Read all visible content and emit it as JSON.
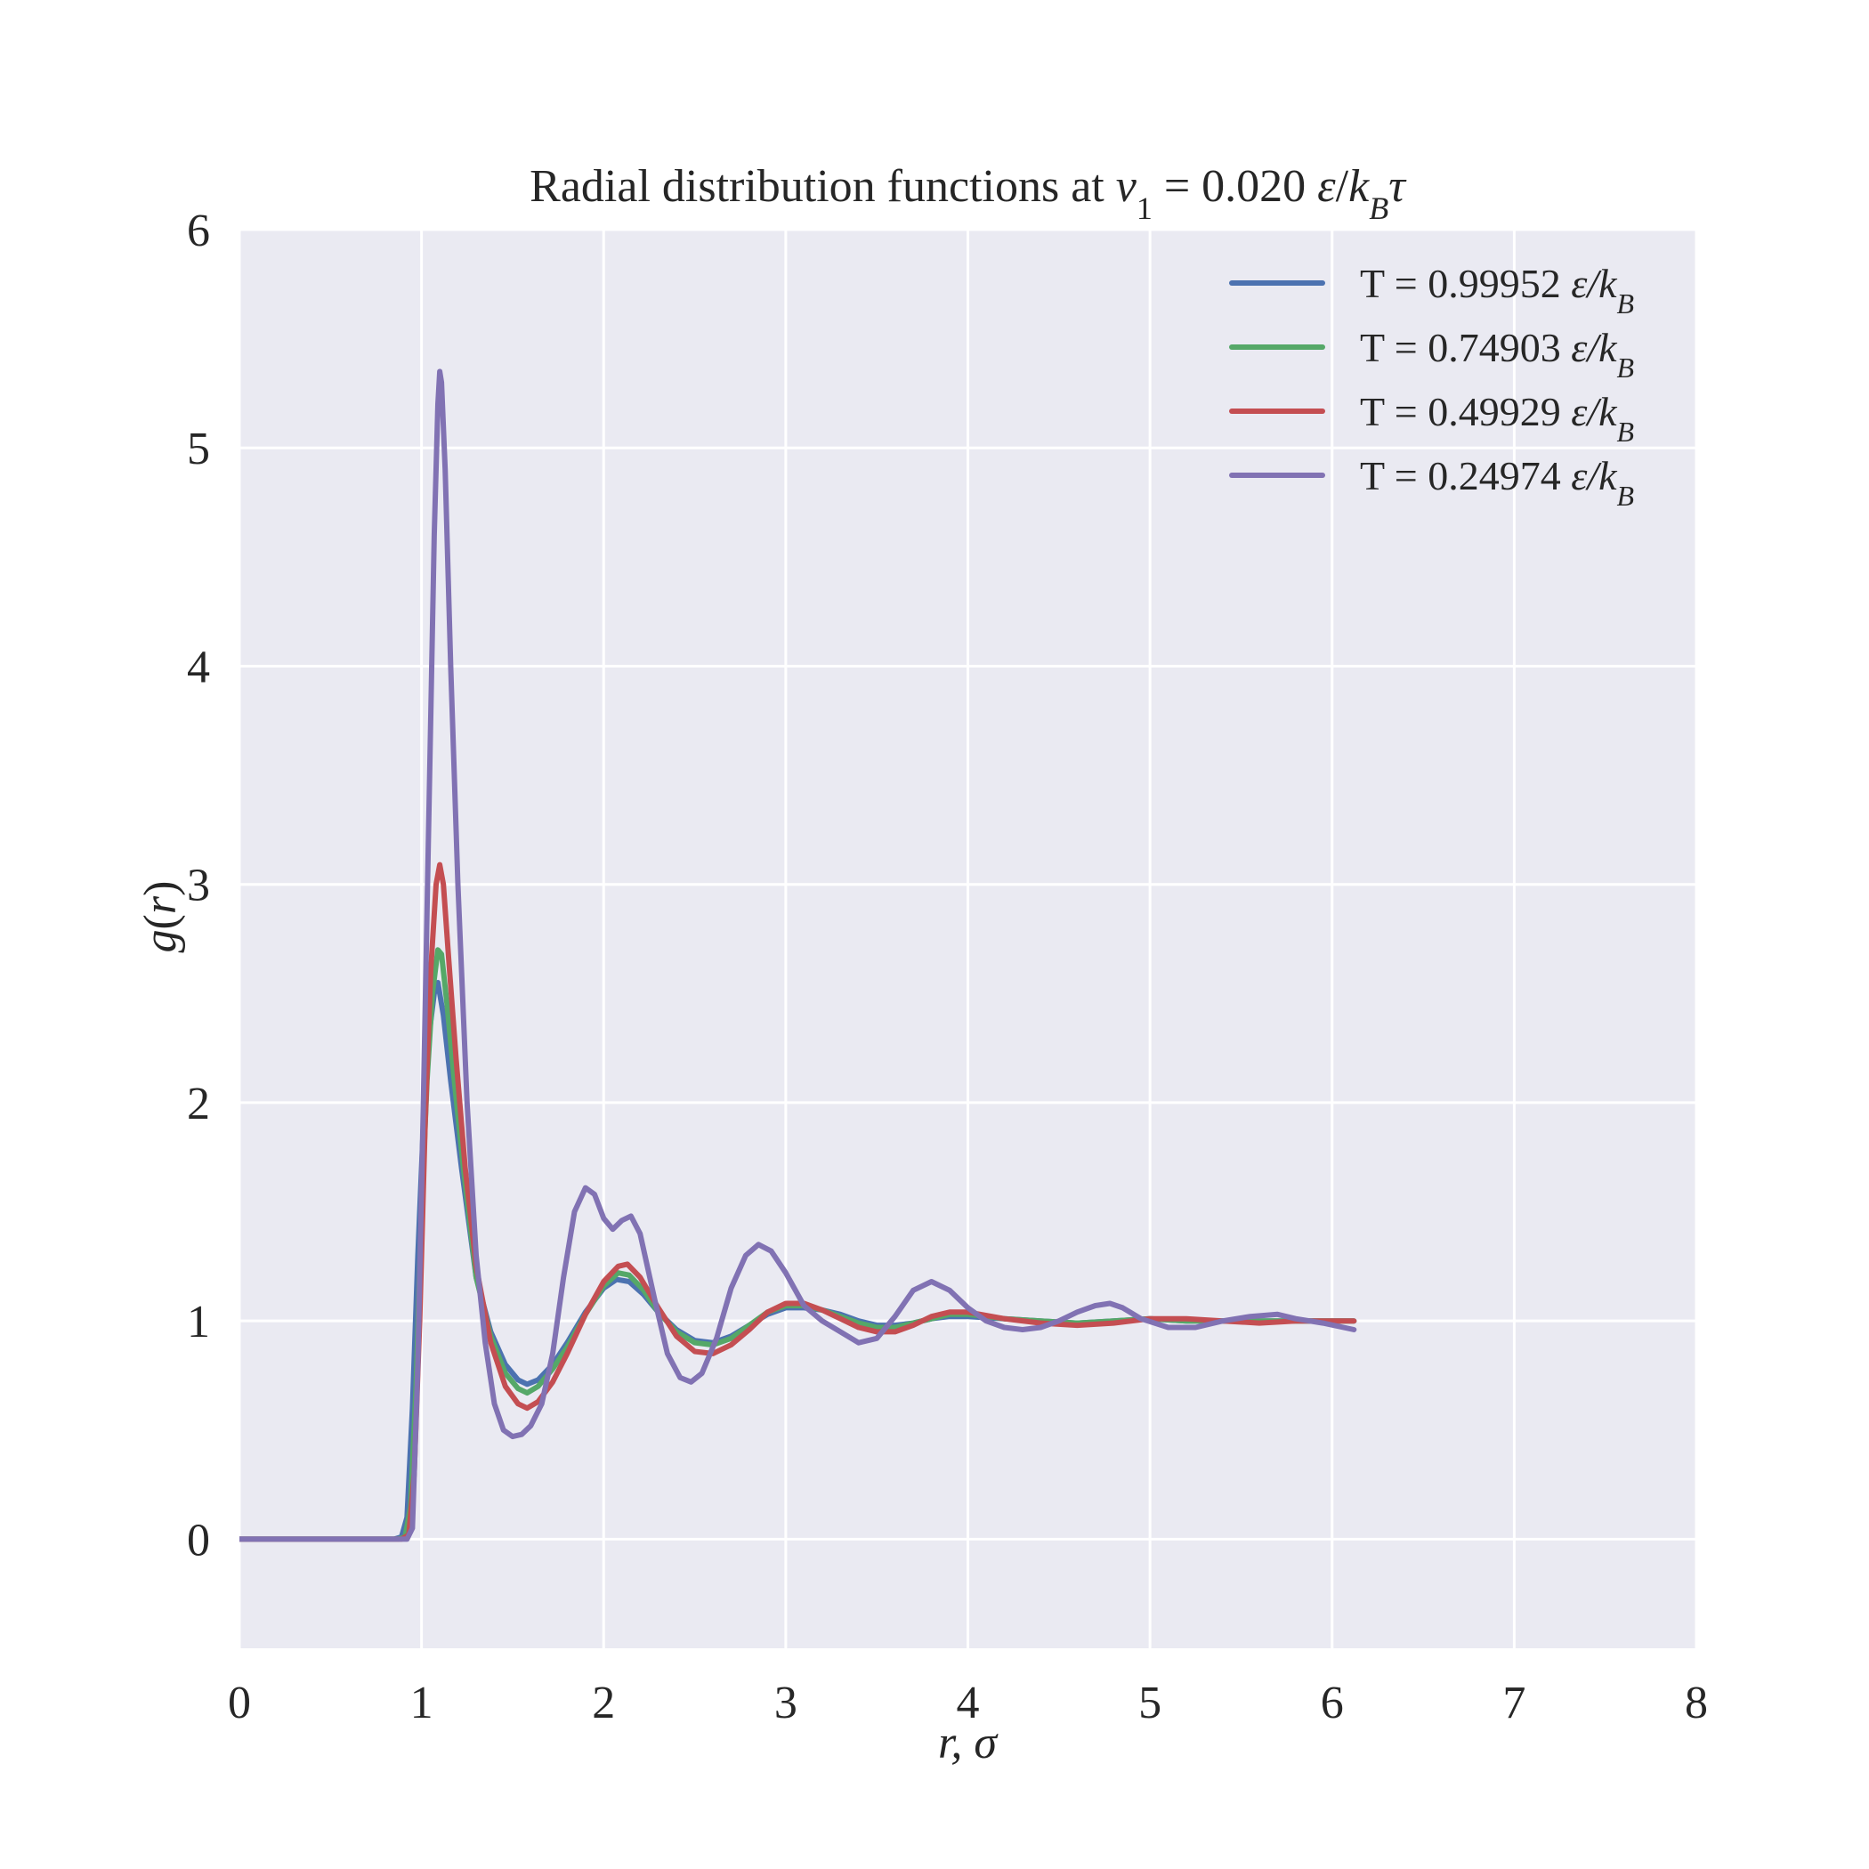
{
  "chart_data": {
    "type": "line",
    "title": {
      "prefix": "Radial distribution functions at ",
      "var": "v",
      "var_sub": "1",
      "equals": " = 0.020 ",
      "unit_eps": "ε",
      "unit_slash": "/",
      "unit_k": "k",
      "unit_k_sub": "B",
      "unit_tau": "τ"
    },
    "xlabel": "r, σ",
    "ylabel": {
      "g": "g",
      "open": "(",
      "r": "r",
      "close": ")"
    },
    "xlim": [
      0,
      8
    ],
    "ylim": [
      -0.5,
      6
    ],
    "xticks": [
      0,
      1,
      2,
      3,
      4,
      5,
      6,
      7,
      8
    ],
    "xtick_labels": [
      "0",
      "1",
      "2",
      "3",
      "4",
      "5",
      "6",
      "7",
      "8"
    ],
    "yticks": [
      0,
      1,
      2,
      3,
      4,
      5,
      6
    ],
    "ytick_labels": [
      "0",
      "1",
      "2",
      "3",
      "4",
      "5",
      "6"
    ],
    "grid": true,
    "background": "#eaeaf2",
    "legend_position": "top-right",
    "series": [
      {
        "name_prefix": "T = 0.99952 ",
        "name_unit": "ε/k",
        "name_sub": "B",
        "color": "#4c72b0",
        "points": [
          [
            0,
            0
          ],
          [
            0.85,
            0
          ],
          [
            0.89,
            0.01
          ],
          [
            0.92,
            0.1
          ],
          [
            0.95,
            0.6
          ],
          [
            0.98,
            1.3
          ],
          [
            1.01,
            1.9
          ],
          [
            1.04,
            2.3
          ],
          [
            1.07,
            2.5
          ],
          [
            1.09,
            2.55
          ],
          [
            1.12,
            2.4
          ],
          [
            1.16,
            2.1
          ],
          [
            1.22,
            1.7
          ],
          [
            1.3,
            1.2
          ],
          [
            1.38,
            0.95
          ],
          [
            1.46,
            0.8
          ],
          [
            1.53,
            0.73
          ],
          [
            1.58,
            0.71
          ],
          [
            1.64,
            0.73
          ],
          [
            1.72,
            0.8
          ],
          [
            1.8,
            0.9
          ],
          [
            1.9,
            1.04
          ],
          [
            2.0,
            1.15
          ],
          [
            2.07,
            1.19
          ],
          [
            2.14,
            1.18
          ],
          [
            2.22,
            1.12
          ],
          [
            2.3,
            1.04
          ],
          [
            2.4,
            0.96
          ],
          [
            2.5,
            0.91
          ],
          [
            2.6,
            0.9
          ],
          [
            2.7,
            0.93
          ],
          [
            2.8,
            0.98
          ],
          [
            2.9,
            1.03
          ],
          [
            3.0,
            1.06
          ],
          [
            3.1,
            1.06
          ],
          [
            3.2,
            1.05
          ],
          [
            3.3,
            1.03
          ],
          [
            3.4,
            1.0
          ],
          [
            3.5,
            0.98
          ],
          [
            3.6,
            0.98
          ],
          [
            3.7,
            0.99
          ],
          [
            3.8,
            1.01
          ],
          [
            3.9,
            1.02
          ],
          [
            4.0,
            1.02
          ],
          [
            4.2,
            1.01
          ],
          [
            4.4,
            1.0
          ],
          [
            4.6,
            0.99
          ],
          [
            4.8,
            1.0
          ],
          [
            5.0,
            1.01
          ],
          [
            5.2,
            1.0
          ],
          [
            5.4,
            1.0
          ],
          [
            5.6,
            1.0
          ],
          [
            5.8,
            1.0
          ],
          [
            6.0,
            1.0
          ],
          [
            6.12,
            1.0
          ]
        ]
      },
      {
        "name_prefix": "T = 0.74903 ",
        "name_unit": "ε/k",
        "name_sub": "B",
        "color": "#55a868",
        "points": [
          [
            0,
            0
          ],
          [
            0.87,
            0
          ],
          [
            0.91,
            0.01
          ],
          [
            0.94,
            0.15
          ],
          [
            0.97,
            0.7
          ],
          [
            1.0,
            1.5
          ],
          [
            1.03,
            2.1
          ],
          [
            1.06,
            2.5
          ],
          [
            1.09,
            2.7
          ],
          [
            1.11,
            2.68
          ],
          [
            1.14,
            2.45
          ],
          [
            1.18,
            2.1
          ],
          [
            1.23,
            1.7
          ],
          [
            1.3,
            1.2
          ],
          [
            1.38,
            0.93
          ],
          [
            1.46,
            0.76
          ],
          [
            1.53,
            0.69
          ],
          [
            1.58,
            0.67
          ],
          [
            1.64,
            0.7
          ],
          [
            1.72,
            0.78
          ],
          [
            1.8,
            0.88
          ],
          [
            1.9,
            1.03
          ],
          [
            2.0,
            1.16
          ],
          [
            2.08,
            1.22
          ],
          [
            2.14,
            1.21
          ],
          [
            2.22,
            1.14
          ],
          [
            2.3,
            1.04
          ],
          [
            2.4,
            0.95
          ],
          [
            2.5,
            0.9
          ],
          [
            2.6,
            0.89
          ],
          [
            2.7,
            0.92
          ],
          [
            2.8,
            0.98
          ],
          [
            2.9,
            1.04
          ],
          [
            3.0,
            1.07
          ],
          [
            3.1,
            1.07
          ],
          [
            3.2,
            1.05
          ],
          [
            3.3,
            1.02
          ],
          [
            3.4,
            0.99
          ],
          [
            3.5,
            0.97
          ],
          [
            3.6,
            0.97
          ],
          [
            3.7,
            0.99
          ],
          [
            3.8,
            1.01
          ],
          [
            3.9,
            1.03
          ],
          [
            4.0,
            1.03
          ],
          [
            4.2,
            1.01
          ],
          [
            4.4,
            1.0
          ],
          [
            4.6,
            0.99
          ],
          [
            4.8,
            1.0
          ],
          [
            5.0,
            1.01
          ],
          [
            5.2,
            1.0
          ],
          [
            5.4,
            1.0
          ],
          [
            5.6,
            1.0
          ],
          [
            5.8,
            1.0
          ],
          [
            6.0,
            1.0
          ],
          [
            6.12,
            1.0
          ]
        ]
      },
      {
        "name_prefix": "T = 0.49929 ",
        "name_unit": "ε/k",
        "name_sub": "B",
        "color": "#c44e52",
        "points": [
          [
            0,
            0
          ],
          [
            0.89,
            0
          ],
          [
            0.93,
            0.02
          ],
          [
            0.96,
            0.3
          ],
          [
            0.99,
            1.0
          ],
          [
            1.02,
            1.9
          ],
          [
            1.05,
            2.6
          ],
          [
            1.08,
            3.0
          ],
          [
            1.1,
            3.09
          ],
          [
            1.12,
            3.0
          ],
          [
            1.15,
            2.65
          ],
          [
            1.19,
            2.2
          ],
          [
            1.24,
            1.7
          ],
          [
            1.3,
            1.25
          ],
          [
            1.38,
            0.9
          ],
          [
            1.46,
            0.7
          ],
          [
            1.53,
            0.62
          ],
          [
            1.58,
            0.6
          ],
          [
            1.64,
            0.63
          ],
          [
            1.72,
            0.72
          ],
          [
            1.8,
            0.85
          ],
          [
            1.9,
            1.03
          ],
          [
            2.0,
            1.18
          ],
          [
            2.08,
            1.25
          ],
          [
            2.13,
            1.26
          ],
          [
            2.2,
            1.2
          ],
          [
            2.3,
            1.06
          ],
          [
            2.4,
            0.93
          ],
          [
            2.5,
            0.86
          ],
          [
            2.6,
            0.85
          ],
          [
            2.7,
            0.89
          ],
          [
            2.8,
            0.96
          ],
          [
            2.9,
            1.04
          ],
          [
            3.0,
            1.08
          ],
          [
            3.1,
            1.08
          ],
          [
            3.2,
            1.05
          ],
          [
            3.3,
            1.01
          ],
          [
            3.4,
            0.97
          ],
          [
            3.5,
            0.95
          ],
          [
            3.6,
            0.95
          ],
          [
            3.7,
            0.98
          ],
          [
            3.8,
            1.02
          ],
          [
            3.9,
            1.04
          ],
          [
            4.0,
            1.04
          ],
          [
            4.2,
            1.01
          ],
          [
            4.4,
            0.99
          ],
          [
            4.6,
            0.98
          ],
          [
            4.8,
            0.99
          ],
          [
            5.0,
            1.01
          ],
          [
            5.2,
            1.01
          ],
          [
            5.4,
            1.0
          ],
          [
            5.6,
            0.99
          ],
          [
            5.8,
            1.0
          ],
          [
            6.0,
            1.0
          ],
          [
            6.12,
            1.0
          ]
        ]
      },
      {
        "name_prefix": "T = 0.24974 ",
        "name_unit": "ε/k",
        "name_sub": "B",
        "color": "#8172b3",
        "points": [
          [
            0,
            0
          ],
          [
            0.92,
            0
          ],
          [
            0.95,
            0.05
          ],
          [
            0.98,
            0.8
          ],
          [
            1.01,
            2.0
          ],
          [
            1.04,
            3.3
          ],
          [
            1.07,
            4.6
          ],
          [
            1.09,
            5.2
          ],
          [
            1.1,
            5.35
          ],
          [
            1.11,
            5.3
          ],
          [
            1.13,
            4.9
          ],
          [
            1.16,
            4.0
          ],
          [
            1.2,
            3.0
          ],
          [
            1.25,
            2.0
          ],
          [
            1.3,
            1.3
          ],
          [
            1.35,
            0.9
          ],
          [
            1.4,
            0.62
          ],
          [
            1.45,
            0.5
          ],
          [
            1.5,
            0.47
          ],
          [
            1.55,
            0.48
          ],
          [
            1.6,
            0.52
          ],
          [
            1.66,
            0.62
          ],
          [
            1.72,
            0.85
          ],
          [
            1.78,
            1.2
          ],
          [
            1.84,
            1.5
          ],
          [
            1.9,
            1.61
          ],
          [
            1.95,
            1.58
          ],
          [
            2.0,
            1.47
          ],
          [
            2.05,
            1.42
          ],
          [
            2.1,
            1.46
          ],
          [
            2.15,
            1.48
          ],
          [
            2.2,
            1.4
          ],
          [
            2.28,
            1.1
          ],
          [
            2.35,
            0.85
          ],
          [
            2.42,
            0.74
          ],
          [
            2.48,
            0.72
          ],
          [
            2.54,
            0.76
          ],
          [
            2.62,
            0.92
          ],
          [
            2.7,
            1.15
          ],
          [
            2.78,
            1.3
          ],
          [
            2.85,
            1.35
          ],
          [
            2.92,
            1.32
          ],
          [
            3.0,
            1.22
          ],
          [
            3.1,
            1.07
          ],
          [
            3.2,
            1.0
          ],
          [
            3.3,
            0.95
          ],
          [
            3.4,
            0.9
          ],
          [
            3.5,
            0.92
          ],
          [
            3.6,
            1.02
          ],
          [
            3.7,
            1.14
          ],
          [
            3.8,
            1.18
          ],
          [
            3.9,
            1.14
          ],
          [
            4.0,
            1.06
          ],
          [
            4.1,
            1.0
          ],
          [
            4.2,
            0.97
          ],
          [
            4.3,
            0.96
          ],
          [
            4.4,
            0.97
          ],
          [
            4.5,
            1.0
          ],
          [
            4.6,
            1.04
          ],
          [
            4.7,
            1.07
          ],
          [
            4.78,
            1.08
          ],
          [
            4.85,
            1.06
          ],
          [
            4.95,
            1.01
          ],
          [
            5.1,
            0.97
          ],
          [
            5.25,
            0.97
          ],
          [
            5.4,
            1.0
          ],
          [
            5.55,
            1.02
          ],
          [
            5.7,
            1.03
          ],
          [
            5.8,
            1.01
          ],
          [
            5.95,
            0.99
          ],
          [
            6.12,
            0.96
          ]
        ]
      }
    ]
  }
}
